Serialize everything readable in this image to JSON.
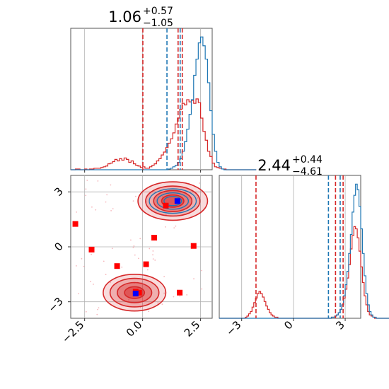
{
  "chart_data": {
    "type": "corner",
    "colors": {
      "series_a": "#1f77b4",
      "series_b": "#d62728",
      "grid": "#b0b0b0",
      "marker_a": "#0000ff",
      "marker_b": "#ff0000"
    },
    "titles": {
      "p1": {
        "value": "1.06",
        "plus": "+0.57",
        "minus": "−1.05"
      },
      "p2": {
        "value": "2.44",
        "plus": "+0.44",
        "minus": "−4.61"
      }
    },
    "axes": {
      "x1": {
        "range": [
          -3.1,
          3.0
        ],
        "ticks": [
          -2.5,
          0.0,
          2.5
        ],
        "tick_labels": [
          "−2.5",
          "0.0",
          "2.5"
        ]
      },
      "x2": {
        "range": [
          -4.3,
          3.9
        ],
        "ticks": [
          -3,
          0,
          3
        ],
        "tick_labels": [
          "−3",
          "0",
          "3"
        ]
      },
      "y2": {
        "range": [
          -3.9,
          3.9
        ],
        "ticks": [
          3,
          0,
          -3
        ],
        "tick_labels": [
          "3",
          "0",
          "−3"
        ]
      }
    },
    "grid": true,
    "hist1": {
      "bin_start": -3.1,
      "bin_width": 0.1,
      "series_a_counts": [
        0,
        0,
        0,
        0,
        0,
        0,
        0,
        0,
        0,
        0,
        0,
        0,
        0,
        0,
        0,
        0,
        0,
        0,
        0,
        0,
        0,
        0,
        0,
        0,
        0,
        0,
        0,
        0,
        0,
        0,
        0,
        0,
        0,
        0,
        0,
        0,
        0,
        0,
        0,
        0,
        0,
        0,
        1,
        2,
        4,
        6,
        10,
        15,
        25,
        38,
        55,
        75,
        95,
        128,
        150,
        172,
        180,
        168,
        150,
        118,
        80,
        48,
        25,
        10,
        4,
        1,
        0,
        0,
        0,
        0,
        0,
        0,
        0,
        0,
        0,
        0,
        0,
        0,
        0,
        0
      ],
      "series_b_counts": [
        0,
        0,
        1,
        1,
        0,
        0,
        1,
        0,
        1,
        1,
        2,
        2,
        2,
        3,
        4,
        5,
        8,
        9,
        11,
        14,
        12,
        15,
        13,
        16,
        14,
        10,
        12,
        8,
        6,
        5,
        3,
        4,
        2,
        2,
        4,
        6,
        8,
        12,
        15,
        20,
        24,
        30,
        36,
        42,
        50,
        62,
        70,
        82,
        90,
        88,
        95,
        92,
        94,
        90,
        96,
        91,
        70,
        52,
        40,
        25,
        18,
        9,
        4,
        3,
        2,
        1,
        1,
        0,
        0,
        0,
        0,
        0,
        0,
        0,
        0,
        0,
        0,
        0,
        0,
        0
      ],
      "max": 186,
      "lines_a": [
        1.05,
        1.62
      ],
      "lines_b": [
        0.01,
        1.53,
        1.71
      ]
    },
    "hist2": {
      "bin_start": -4.3,
      "bin_width": 0.1,
      "series_a_counts": [
        0,
        0,
        0,
        0,
        0,
        0,
        0,
        0,
        0,
        0,
        0,
        0,
        0,
        0,
        0,
        0,
        0,
        0,
        0,
        0,
        0,
        0,
        0,
        0,
        0,
        0,
        0,
        0,
        0,
        0,
        0,
        0,
        0,
        0,
        0,
        0,
        0,
        0,
        0,
        0,
        0,
        0,
        0,
        0,
        0,
        0,
        0,
        0,
        0,
        0,
        0,
        0,
        0,
        0,
        0,
        0,
        0,
        0,
        0,
        0,
        0,
        0,
        0,
        0,
        0,
        1,
        1,
        2,
        3,
        5,
        8,
        12,
        20,
        30,
        42,
        58,
        75,
        95,
        110,
        120,
        115,
        100,
        80,
        58,
        38,
        22,
        12,
        6,
        3,
        1,
        1,
        0,
        0,
        0,
        0,
        0,
        0,
        0,
        0,
        0,
        0,
        0,
        0,
        0,
        0,
        0,
        0,
        0,
        0,
        0,
        0,
        0,
        0,
        0,
        0,
        0,
        0,
        0,
        0,
        0
      ],
      "series_b_counts": [
        0,
        0,
        0,
        0,
        0,
        0,
        0,
        0,
        0,
        0,
        0,
        0,
        0,
        0,
        0,
        1,
        2,
        4,
        6,
        10,
        14,
        18,
        22,
        24,
        22,
        19,
        15,
        11,
        8,
        5,
        3,
        2,
        1,
        1,
        0,
        0,
        0,
        0,
        0,
        0,
        0,
        0,
        0,
        0,
        0,
        0,
        0,
        0,
        0,
        0,
        0,
        0,
        0,
        0,
        0,
        0,
        0,
        0,
        0,
        0,
        0,
        0,
        0,
        0,
        0,
        1,
        1,
        2,
        3,
        5,
        8,
        12,
        18,
        26,
        36,
        48,
        62,
        74,
        82,
        80,
        72,
        60,
        46,
        32,
        20,
        12,
        6,
        3,
        2,
        1,
        0,
        0,
        0,
        0,
        0,
        0,
        0,
        0,
        0,
        0,
        0,
        0,
        0,
        0,
        0,
        0,
        0,
        0,
        0,
        0,
        0,
        0,
        0,
        0,
        0,
        0,
        0,
        0,
        0,
        0
      ],
      "max": 124,
      "lines_a": [
        2.03,
        2.71
      ],
      "lines_b": [
        -2.17,
        2.44,
        2.88
      ]
    },
    "scatter": {
      "markers_b": [
        [
          -2.9,
          1.25
        ],
        [
          -2.2,
          -0.15
        ],
        [
          -1.1,
          -1.05
        ],
        [
          0.15,
          -0.95
        ],
        [
          0.5,
          0.5
        ],
        [
          1.0,
          2.25
        ],
        [
          2.2,
          0.05
        ],
        [
          1.6,
          -2.5
        ],
        [
          -0.15,
          -2.5
        ],
        [
          -0.3,
          -2.45
        ]
      ],
      "markers_a": [
        [
          1.5,
          2.5
        ],
        [
          -0.3,
          -2.55
        ]
      ],
      "density_regions": [
        {
          "cx": 1.3,
          "cy": 2.5,
          "rx": 1.5,
          "ry": 1.05
        },
        {
          "cx": -0.35,
          "cy": -2.5,
          "rx": 1.35,
          "ry": 1.0
        }
      ]
    }
  }
}
